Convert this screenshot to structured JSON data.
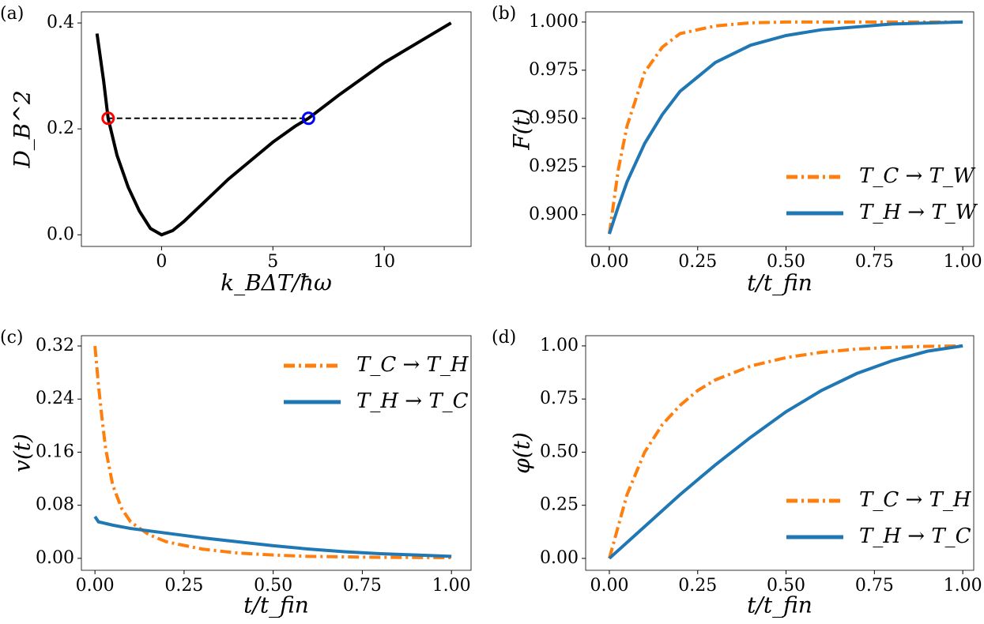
{
  "chart_data": [
    {
      "type": "line",
      "panel": "(a)",
      "xlabel": "k_BΔT/ħω",
      "ylabel": "D_B^2",
      "xlim": [
        -3.6,
        13.9
      ],
      "ylim": [
        -0.022,
        0.421
      ],
      "xticks": [
        0,
        5,
        10
      ],
      "yticks": [
        {
          "value": 0,
          "label": "0.0"
        },
        {
          "value": 0.2,
          "label": "0.2"
        },
        {
          "value": 0.4,
          "label": "0.4"
        }
      ],
      "series": [
        {
          "color": "#000000",
          "linestyle": "solid",
          "x": [
            -2.9,
            -2.6,
            -2.4,
            -2.0,
            -1.5,
            -1.0,
            -0.5,
            0,
            0.5,
            1,
            2,
            3,
            4,
            5,
            6,
            6.6,
            8,
            10,
            12,
            13
          ],
          "values": [
            0.38,
            0.29,
            0.22,
            0.15,
            0.09,
            0.045,
            0.012,
            0,
            0.008,
            0.025,
            0.065,
            0.105,
            0.14,
            0.175,
            0.205,
            0.22,
            0.265,
            0.325,
            0.375,
            0.4
          ]
        }
      ],
      "markers": [
        {
          "x": -2.4,
          "y": 0.22,
          "color": "#ff0000"
        },
        {
          "x": 6.6,
          "y": 0.22,
          "color": "#0000ff"
        }
      ]
    },
    {
      "type": "line",
      "panel": "(b)",
      "xlabel": "t/t_fin",
      "ylabel": "F(t)",
      "xlim": [
        -0.067,
        1.031
      ],
      "ylim": [
        0.8835,
        1.0053
      ],
      "xticks": [
        {
          "value": 0,
          "label": "0.00"
        },
        {
          "value": 0.25,
          "label": "0.25"
        },
        {
          "value": 0.5,
          "label": "0.50"
        },
        {
          "value": 0.75,
          "label": "0.75"
        },
        {
          "value": 1,
          "label": "1.00"
        }
      ],
      "yticks": [
        {
          "value": 0.9,
          "label": "0.900"
        },
        {
          "value": 0.925,
          "label": "0.925"
        },
        {
          "value": 0.95,
          "label": "0.950"
        },
        {
          "value": 0.975,
          "label": "0.975"
        },
        {
          "value": 1,
          "label": "1.000"
        }
      ],
      "legend": "lower right",
      "series": [
        {
          "name": "T_C → T_W",
          "color": "#ff7f0e",
          "linestyle": "dashdot",
          "x": [
            0,
            0.025,
            0.05,
            0.1,
            0.15,
            0.2,
            0.3,
            0.4,
            0.5,
            0.6,
            0.8,
            1.0
          ],
          "values": [
            0.89,
            0.923,
            0.946,
            0.974,
            0.987,
            0.994,
            0.998,
            0.9996,
            1.0,
            1.0,
            1.0,
            1.0
          ]
        },
        {
          "name": "T_H → T_W",
          "color": "#1f77b4",
          "linestyle": "solid",
          "x": [
            0,
            0.025,
            0.05,
            0.1,
            0.15,
            0.2,
            0.3,
            0.4,
            0.5,
            0.6,
            0.8,
            1.0
          ],
          "values": [
            0.89,
            0.904,
            0.917,
            0.937,
            0.952,
            0.964,
            0.979,
            0.988,
            0.993,
            0.996,
            0.999,
            1.0
          ]
        }
      ]
    },
    {
      "type": "line",
      "panel": "(c)",
      "xlabel": "t/t_fin",
      "ylabel": "v(t)",
      "xlim": [
        -0.038,
        1.055
      ],
      "ylim": [
        -0.018,
        0.3355
      ],
      "xticks": [
        {
          "value": 0,
          "label": "0.00"
        },
        {
          "value": 0.25,
          "label": "0.25"
        },
        {
          "value": 0.5,
          "label": "0.50"
        },
        {
          "value": 0.75,
          "label": "0.75"
        },
        {
          "value": 1,
          "label": "1.00"
        }
      ],
      "yticks": [
        {
          "value": 0,
          "label": "0.00"
        },
        0.08,
        0.16,
        0.24,
        0.32
      ],
      "legend": "upper right",
      "series": [
        {
          "name": "T_C → T_H",
          "color": "#ff7f0e",
          "linestyle": "dashdot",
          "x": [
            0,
            0.01,
            0.02,
            0.03,
            0.05,
            0.075,
            0.1,
            0.15,
            0.2,
            0.3,
            0.4,
            0.5,
            0.6,
            0.8,
            1.0
          ],
          "values": [
            0.32,
            0.26,
            0.21,
            0.165,
            0.11,
            0.075,
            0.055,
            0.036,
            0.025,
            0.014,
            0.008,
            0.005,
            0.003,
            0.0015,
            0.001
          ]
        },
        {
          "name": "T_H → T_C",
          "color": "#1f77b4",
          "linestyle": "solid",
          "x": [
            0,
            0.01,
            0.05,
            0.1,
            0.2,
            0.3,
            0.4,
            0.5,
            0.6,
            0.7,
            0.8,
            0.9,
            1.0
          ],
          "values": [
            0.063,
            0.055,
            0.05,
            0.045,
            0.038,
            0.031,
            0.025,
            0.019,
            0.014,
            0.01,
            0.007,
            0.005,
            0.003
          ]
        }
      ]
    },
    {
      "type": "line",
      "panel": "(d)",
      "xlabel": "t/t_fin",
      "ylabel": "φ(t)",
      "xlim": [
        -0.067,
        1.031
      ],
      "ylim": [
        -0.056,
        1.048
      ],
      "xticks": [
        {
          "value": 0,
          "label": "0.00"
        },
        {
          "value": 0.25,
          "label": "0.25"
        },
        {
          "value": 0.5,
          "label": "0.50"
        },
        {
          "value": 0.75,
          "label": "0.75"
        },
        {
          "value": 1,
          "label": "1.00"
        }
      ],
      "yticks": [
        {
          "value": 0,
          "label": "0.00"
        },
        0.25,
        {
          "value": 0.5,
          "label": "0.50"
        },
        0.75,
        {
          "value": 1,
          "label": "1.00"
        }
      ],
      "legend": "lower right",
      "series": [
        {
          "name": "T_C → T_H",
          "color": "#ff7f0e",
          "linestyle": "dashdot",
          "x": [
            0,
            0.05,
            0.1,
            0.15,
            0.2,
            0.25,
            0.3,
            0.4,
            0.5,
            0.6,
            0.7,
            0.8,
            0.9,
            1.0
          ],
          "values": [
            0,
            0.3,
            0.5,
            0.63,
            0.72,
            0.79,
            0.84,
            0.905,
            0.945,
            0.97,
            0.985,
            0.993,
            0.998,
            1.0
          ]
        },
        {
          "name": "T_H → T_C",
          "color": "#1f77b4",
          "linestyle": "solid",
          "x": [
            0,
            0.1,
            0.2,
            0.3,
            0.4,
            0.5,
            0.6,
            0.7,
            0.8,
            0.9,
            1.0
          ],
          "values": [
            0,
            0.15,
            0.3,
            0.44,
            0.57,
            0.69,
            0.79,
            0.87,
            0.93,
            0.975,
            1.0
          ]
        }
      ]
    }
  ]
}
